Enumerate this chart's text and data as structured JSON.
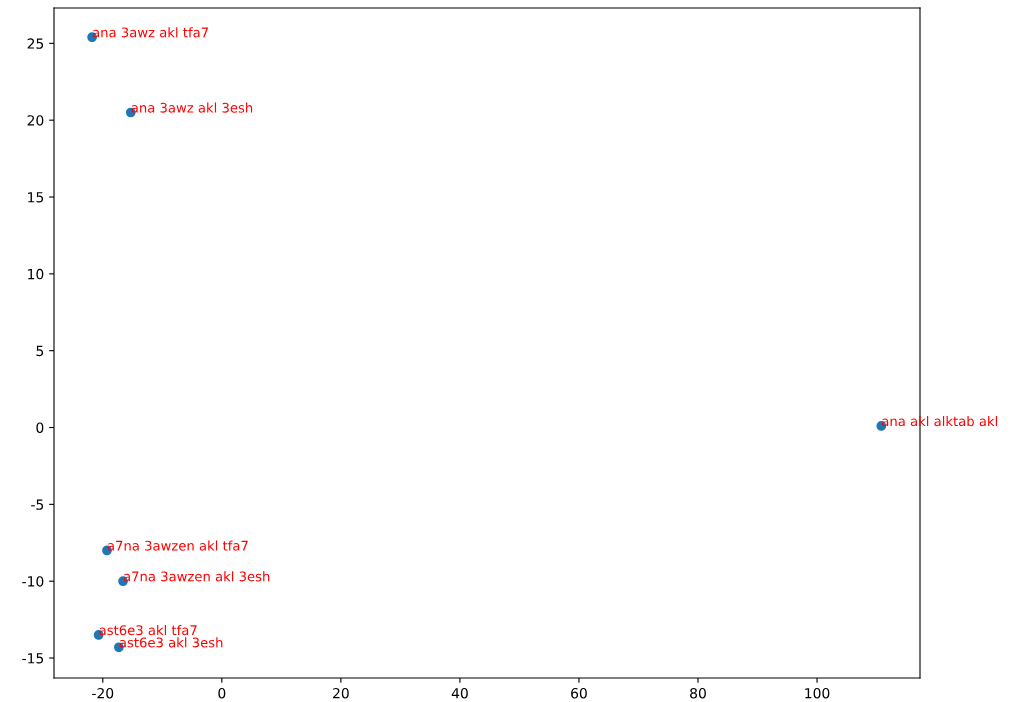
{
  "chart_data": {
    "type": "scatter",
    "x": [
      -21.8,
      -15.3,
      110.8,
      -19.3,
      -16.6,
      -20.7,
      -17.3
    ],
    "series": [
      {
        "color": "#1f77b4",
        "values": [
          25.4,
          20.5,
          0.1,
          -8.0,
          -10.0,
          -13.5,
          -14.3
        ]
      }
    ],
    "annotations": [
      {
        "text": "ana 3awz akl tfa7",
        "x": -21.8,
        "y": 25.4
      },
      {
        "text": "ana 3awz akl 3esh",
        "x": -15.3,
        "y": 20.5
      },
      {
        "text": "ana akl alktab akl",
        "x": 110.8,
        "y": 0.1
      },
      {
        "text": "a7na 3awzen akl tfa7",
        "x": -19.3,
        "y": -8.0
      },
      {
        "text": "a7na 3awzen akl 3esh",
        "x": -16.6,
        "y": -10.0
      },
      {
        "text": "ast6e3 akl tfa7",
        "x": -20.7,
        "y": -13.5
      },
      {
        "text": "ast6e3 akl 3esh",
        "x": -17.3,
        "y": -14.3
      }
    ],
    "xlim": [
      -28.2,
      117.3
    ],
    "ylim": [
      -16.3,
      27.3
    ],
    "xticks": [
      -20,
      0,
      20,
      40,
      60,
      80,
      100
    ],
    "yticks": [
      -15,
      -10,
      -5,
      0,
      5,
      10,
      15,
      20,
      25
    ],
    "grid": false,
    "legend": false
  }
}
